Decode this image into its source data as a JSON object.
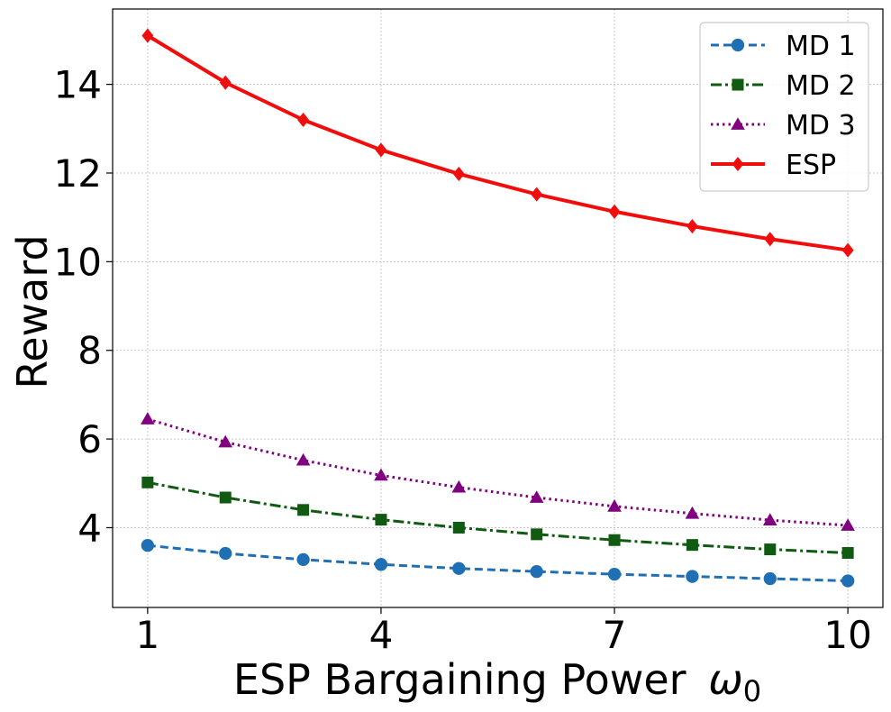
{
  "chart_data": {
    "type": "line",
    "xlabel": "ESP Bargaining Power",
    "xlabel_symbol": "ω",
    "xlabel_subscript": "0",
    "ylabel": "Reward",
    "xlim": [
      0.55,
      10.45
    ],
    "ylim": [
      2.2,
      15.7
    ],
    "x_ticks": [
      1,
      4,
      7,
      10
    ],
    "y_ticks": [
      4,
      6,
      8,
      10,
      12,
      14
    ],
    "grid": true,
    "legend_position": "top-right",
    "x": [
      1,
      2,
      3,
      4,
      5,
      6,
      7,
      8,
      9,
      10
    ],
    "series": [
      {
        "name": "MD 1",
        "color": "#1f6fb4",
        "marker": "circle",
        "dash": "dashed",
        "values": [
          3.6,
          3.42,
          3.28,
          3.17,
          3.08,
          3.01,
          2.95,
          2.9,
          2.85,
          2.8
        ]
      },
      {
        "name": "MD 2",
        "color": "#115a11",
        "marker": "square",
        "dash": "dashdot",
        "values": [
          5.02,
          4.68,
          4.4,
          4.18,
          4.0,
          3.85,
          3.72,
          3.61,
          3.51,
          3.43
        ]
      },
      {
        "name": "MD 3",
        "color": "#800080",
        "marker": "triangle",
        "dash": "dotted",
        "values": [
          6.45,
          5.93,
          5.52,
          5.18,
          4.91,
          4.68,
          4.48,
          4.32,
          4.17,
          4.05
        ]
      },
      {
        "name": "ESP",
        "color": "#f20d0d",
        "marker": "diamond",
        "dash": "solid",
        "values": [
          15.1,
          14.04,
          13.2,
          12.52,
          11.98,
          11.52,
          11.13,
          10.8,
          10.51,
          10.26
        ]
      }
    ]
  }
}
